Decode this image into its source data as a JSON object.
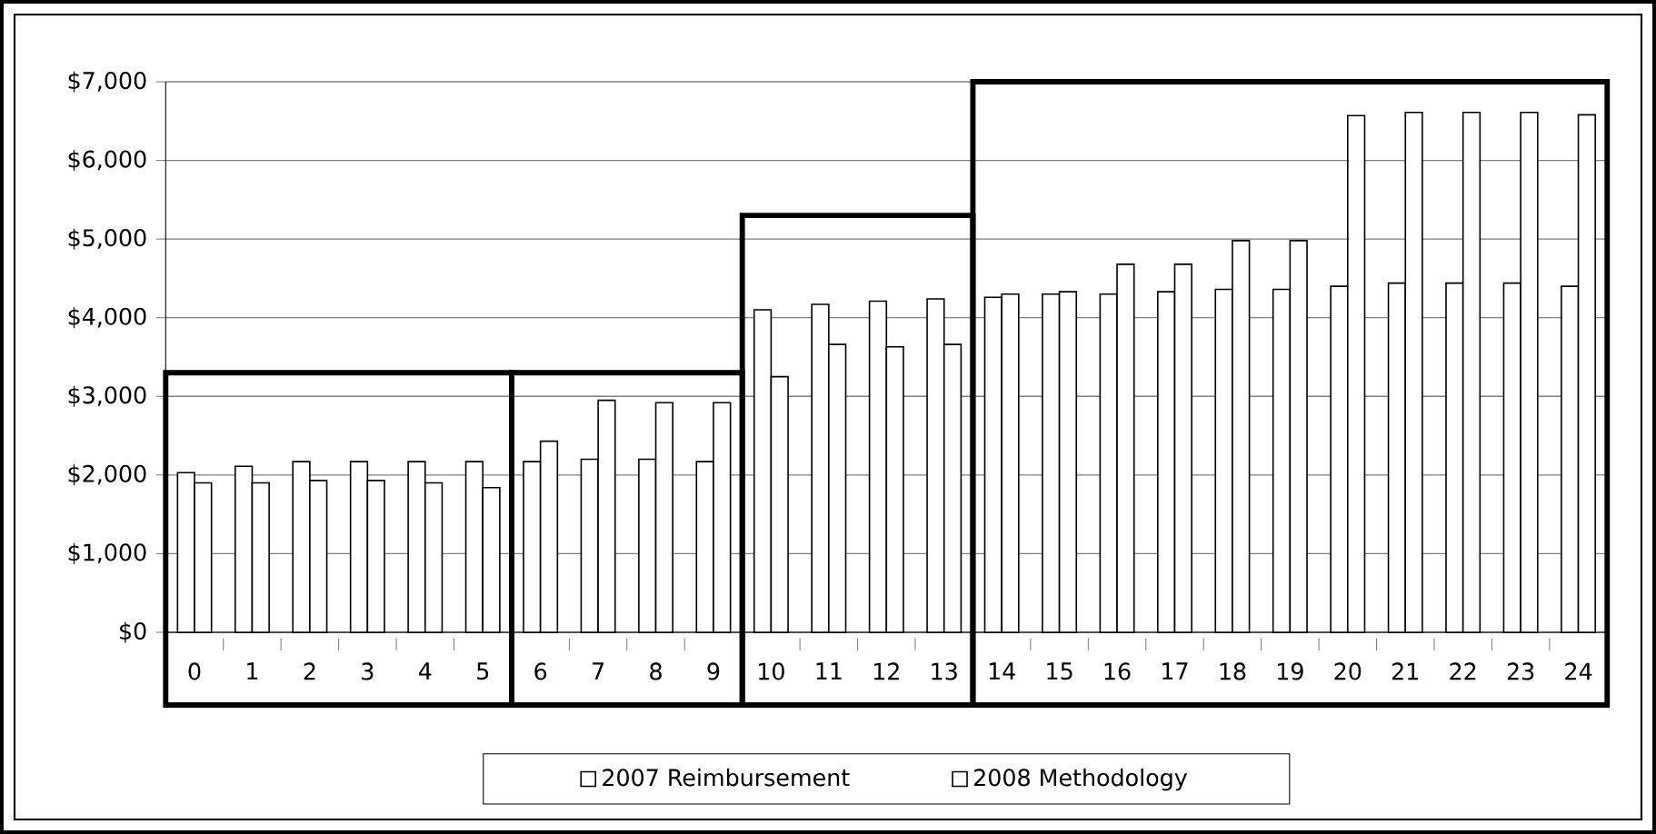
{
  "chart_data": {
    "type": "bar",
    "categories": [
      "0",
      "1",
      "2",
      "3",
      "4",
      "5",
      "6",
      "7",
      "8",
      "9",
      "10",
      "11",
      "12",
      "13",
      "14",
      "15",
      "16",
      "17",
      "18",
      "19",
      "20",
      "21",
      "22",
      "23",
      "24"
    ],
    "series": [
      {
        "name": "2007 Reimbursement",
        "color": "#ffffff",
        "values": [
          2030,
          2110,
          2170,
          2170,
          2170,
          2170,
          2170,
          2200,
          2200,
          2170,
          4100,
          4170,
          4210,
          4240,
          4260,
          4300,
          4300,
          4330,
          4360,
          4360,
          4400,
          4440,
          4440,
          4440,
          4400
        ]
      },
      {
        "name": "2008 Methodology",
        "color": "#ffffff",
        "values": [
          1900,
          1900,
          1930,
          1930,
          1900,
          1840,
          2430,
          2950,
          2920,
          2920,
          3250,
          3660,
          3630,
          3660,
          4300,
          4330,
          4680,
          4680,
          4980,
          4980,
          6570,
          6610,
          6610,
          6610,
          6580
        ]
      }
    ],
    "ylim": [
      0,
      7000
    ],
    "yticks": [
      {
        "value": 0,
        "label": "$0"
      },
      {
        "value": 1000,
        "label": "$1,000"
      },
      {
        "value": 2000,
        "label": "$2,000"
      },
      {
        "value": 3000,
        "label": "$3,000"
      },
      {
        "value": 4000,
        "label": "$4,000"
      },
      {
        "value": 5000,
        "label": "$5,000"
      },
      {
        "value": 6000,
        "label": "$6,000"
      },
      {
        "value": 7000,
        "label": "$7,000"
      }
    ],
    "grid": "y",
    "legend": "bottom"
  }
}
